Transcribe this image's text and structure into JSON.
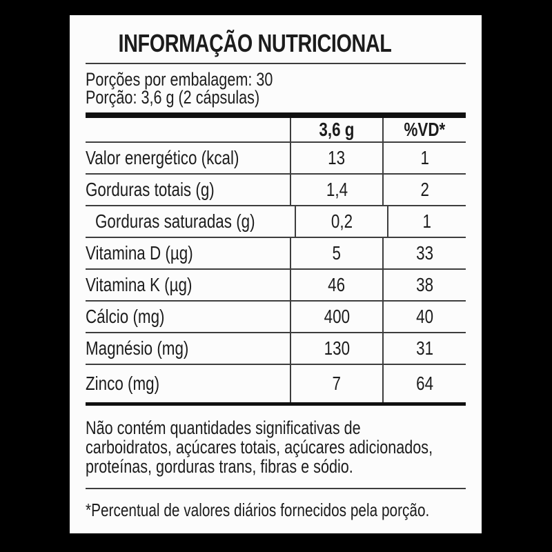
{
  "colors": {
    "background": "#000000",
    "panel": "#fcfcfc",
    "text": "#1c1c1c",
    "thin_line": "#3d3d3d",
    "thick_bar": "#101010"
  },
  "title": "INFORMAÇÃO NUTRICIONAL",
  "serving": {
    "servings_per_package": "Porções por embalagem: 30",
    "serving_size": "Porção:  3,6 g (2 cápsulas)"
  },
  "table": {
    "columns": {
      "amount": "3,6 g",
      "daily_value": "%VD*"
    },
    "rows": [
      {
        "label": "Valor energético (kcal)",
        "amount": "13",
        "vd": "1"
      },
      {
        "label": "Gorduras totais (g)",
        "amount": "1,4",
        "vd": "2"
      },
      {
        "label": "Gorduras saturadas (g)",
        "amount": "0,2",
        "vd": "1"
      },
      {
        "label": "Vitamina D (µg)",
        "amount": "5",
        "vd": "33"
      },
      {
        "label": "Vitamina K (µg)",
        "amount": "46",
        "vd": "38"
      },
      {
        "label": "Cálcio (mg)",
        "amount": "400",
        "vd": "40"
      },
      {
        "label": "Magnésio (mg)",
        "amount": "130",
        "vd": "31"
      },
      {
        "label": "Zinco (mg)",
        "amount": "7",
        "vd": "64"
      }
    ]
  },
  "disclaimer": {
    "lines": [
      "Não contém quantidades significativas de",
      "carboidratos, açúcares totais, açúcares adicionados,",
      "proteínas, gorduras trans, fibras e sódio."
    ]
  },
  "footnote": "*Percentual de valores diários fornecidos pela porção."
}
